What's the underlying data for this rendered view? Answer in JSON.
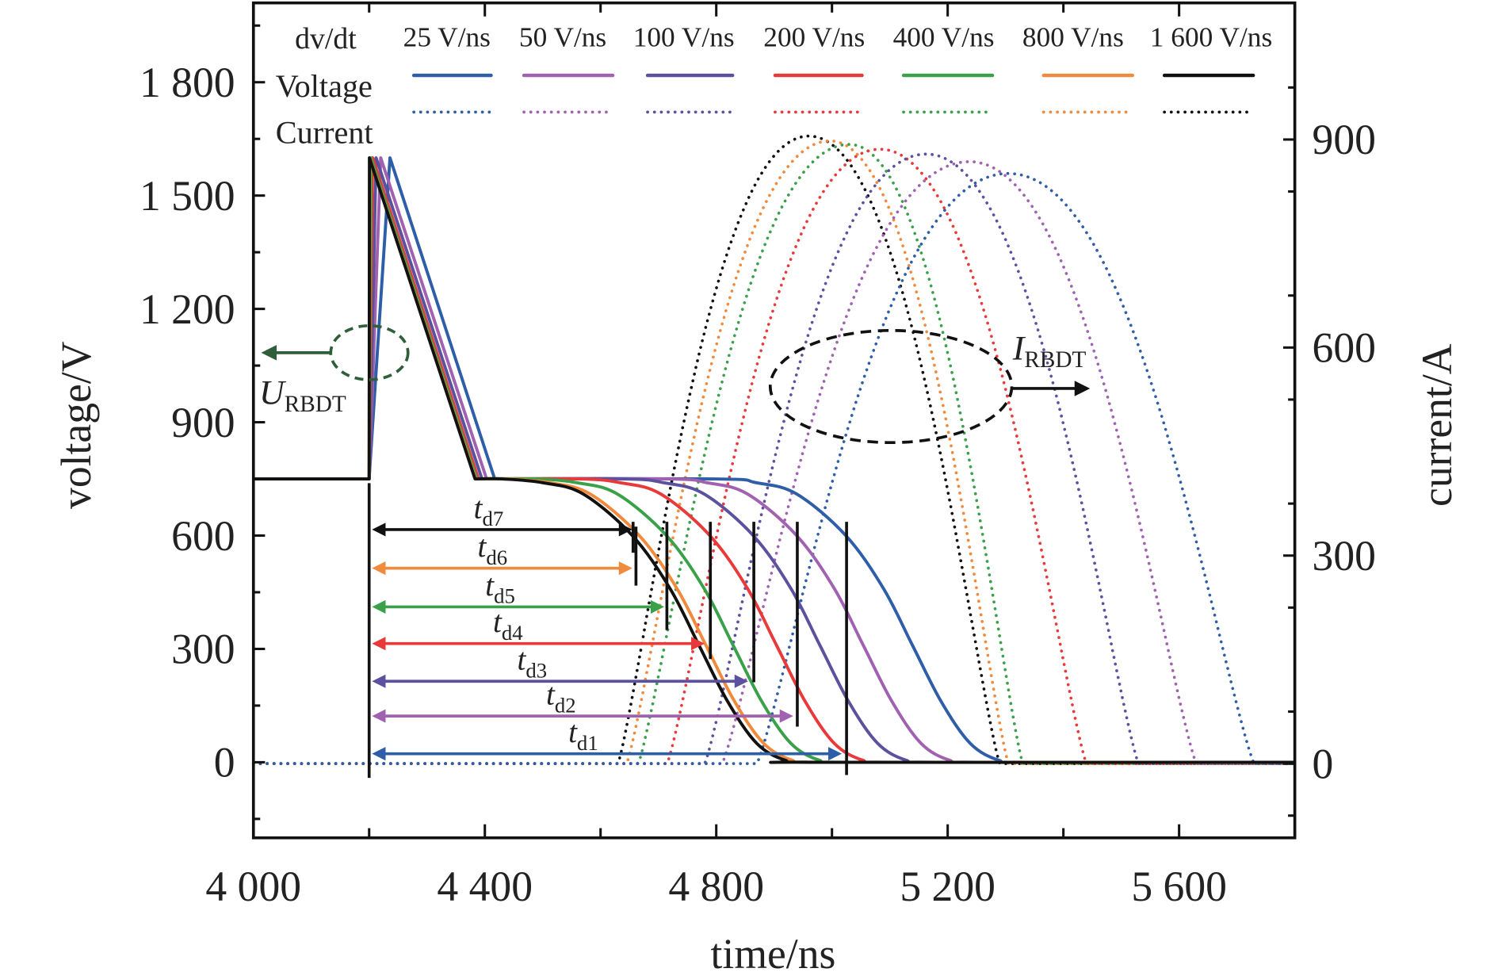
{
  "chart_data": {
    "type": "line",
    "xlabel": "time/ns",
    "ylabel_left": "voltage/V",
    "ylabel_right": "current/A",
    "xlim": [
      4000,
      5800
    ],
    "ylim_left": [
      -200,
      2010
    ],
    "ylim_right": [
      -107,
      1097
    ],
    "x_ticks": [
      {
        "v": 4000,
        "label": "4 000"
      },
      {
        "v": 4400,
        "label": "4 400"
      },
      {
        "v": 4800,
        "label": "4 800"
      },
      {
        "v": 5200,
        "label": "5 200"
      },
      {
        "v": 5600,
        "label": "5 600"
      }
    ],
    "y_left_ticks": [
      {
        "v": 0,
        "label": "0"
      },
      {
        "v": 300,
        "label": "300"
      },
      {
        "v": 600,
        "label": "600"
      },
      {
        "v": 900,
        "label": "900"
      },
      {
        "v": 1200,
        "label": "1 200"
      },
      {
        "v": 1500,
        "label": "1 500"
      },
      {
        "v": 1800,
        "label": "1 800"
      }
    ],
    "y_right_ticks": [
      {
        "v": 0,
        "label": "0"
      },
      {
        "v": 300,
        "label": "300"
      },
      {
        "v": 600,
        "label": "600"
      },
      {
        "v": 900,
        "label": "900"
      }
    ],
    "grid": false,
    "legend": {
      "placement": "top",
      "header": "dv/dt",
      "row_voltage": "Voltage",
      "row_current": "Current"
    },
    "series": [
      {
        "name": "25 V/ns",
        "color": "#2e5ea8",
        "voltage": [
          [
            4000,
            750
          ],
          [
            4200,
            750
          ],
          [
            4236,
            1600
          ],
          [
            4417,
            750
          ],
          [
            4799,
            750
          ],
          [
            4869,
            740
          ],
          [
            4939,
            710
          ],
          [
            5024,
            600
          ],
          [
            5089,
            460
          ],
          [
            5139,
            310
          ],
          [
            5189,
            160
          ],
          [
            5239,
            50
          ],
          [
            5289,
            5
          ],
          [
            5339,
            0
          ],
          [
            5800,
            0
          ]
        ],
        "current": {
          "start": 4870,
          "peak_time": 5305,
          "peak": 851,
          "end": 5730
        }
      },
      {
        "name": "50 V/ns",
        "color": "#a062b0",
        "voltage": [
          [
            4000,
            750
          ],
          [
            4200,
            750
          ],
          [
            4220,
            1600
          ],
          [
            4403,
            750
          ],
          [
            4714,
            750
          ],
          [
            4784,
            740
          ],
          [
            4854,
            710
          ],
          [
            4939,
            600
          ],
          [
            5004,
            460
          ],
          [
            5054,
            310
          ],
          [
            5104,
            160
          ],
          [
            5154,
            50
          ],
          [
            5204,
            5
          ],
          [
            5254,
            0
          ],
          [
            5800,
            0
          ]
        ],
        "current": {
          "start": 4810,
          "peak_time": 5238,
          "peak": 868,
          "end": 5630
        }
      },
      {
        "name": "100 V/ns",
        "color": "#5b519f",
        "voltage": [
          [
            4000,
            750
          ],
          [
            4200,
            750
          ],
          [
            4212,
            1600
          ],
          [
            4395,
            750
          ],
          [
            4639,
            750
          ],
          [
            4709,
            740
          ],
          [
            4779,
            710
          ],
          [
            4864,
            600
          ],
          [
            4929,
            460
          ],
          [
            4979,
            310
          ],
          [
            5029,
            160
          ],
          [
            5079,
            50
          ],
          [
            5129,
            5
          ],
          [
            5179,
            0
          ],
          [
            5800,
            0
          ]
        ],
        "current": {
          "start": 4780,
          "peak_time": 5163,
          "peak": 879,
          "end": 5530
        }
      },
      {
        "name": "200 V/ns",
        "color": "#e83a3a",
        "voltage": [
          [
            4000,
            750
          ],
          [
            4200,
            750
          ],
          [
            4206,
            1600
          ],
          [
            4389,
            750
          ],
          [
            4564,
            750
          ],
          [
            4634,
            740
          ],
          [
            4704,
            710
          ],
          [
            4789,
            600
          ],
          [
            4854,
            460
          ],
          [
            4904,
            310
          ],
          [
            4954,
            160
          ],
          [
            5004,
            50
          ],
          [
            5054,
            5
          ],
          [
            5104,
            0
          ],
          [
            5800,
            0
          ]
        ],
        "current": {
          "start": 4715,
          "peak_time": 5083,
          "peak": 886,
          "end": 5440
        }
      },
      {
        "name": "400 V/ns",
        "color": "#3aa14a",
        "voltage": [
          [
            4000,
            750
          ],
          [
            4200,
            750
          ],
          [
            4203,
            1600
          ],
          [
            4386,
            750
          ],
          [
            4489,
            750
          ],
          [
            4559,
            740
          ],
          [
            4629,
            710
          ],
          [
            4714,
            600
          ],
          [
            4779,
            460
          ],
          [
            4829,
            310
          ],
          [
            4879,
            160
          ],
          [
            4929,
            50
          ],
          [
            4979,
            5
          ],
          [
            5029,
            0
          ],
          [
            5800,
            0
          ]
        ],
        "current": {
          "start": 4665,
          "peak_time": 5030,
          "peak": 893,
          "end": 5330
        }
      },
      {
        "name": "800 V/ns",
        "color": "#f08a3c",
        "voltage": [
          [
            4000,
            750
          ],
          [
            4200,
            750
          ],
          [
            4201,
            1600
          ],
          [
            4384,
            750
          ],
          [
            4442,
            750
          ],
          [
            4512,
            740
          ],
          [
            4582,
            710
          ],
          [
            4667,
            600
          ],
          [
            4732,
            460
          ],
          [
            4782,
            310
          ],
          [
            4832,
            160
          ],
          [
            4882,
            50
          ],
          [
            4932,
            5
          ],
          [
            4982,
            0
          ],
          [
            5800,
            0
          ]
        ],
        "current": {
          "start": 4645,
          "peak_time": 4997,
          "peak": 898,
          "end": 5305
        }
      },
      {
        "name": "1 600 V/ns",
        "color": "#111111",
        "voltage": [
          [
            4000,
            750
          ],
          [
            4200,
            750
          ],
          [
            4200.5,
            1600
          ],
          [
            4383,
            750
          ],
          [
            4430,
            750
          ],
          [
            4500,
            740
          ],
          [
            4570,
            710
          ],
          [
            4655,
            600
          ],
          [
            4720,
            460
          ],
          [
            4770,
            310
          ],
          [
            4820,
            160
          ],
          [
            4870,
            50
          ],
          [
            4920,
            5
          ],
          [
            4970,
            0
          ],
          [
            5800,
            0
          ]
        ],
        "current": {
          "start": 4630,
          "peak_time": 4960,
          "peak": 905,
          "end": 5290
        }
      }
    ],
    "delay_marks": [
      {
        "label": "t",
        "sub": "d7",
        "color": "#111111",
        "end": 4655
      },
      {
        "label": "t",
        "sub": "d6",
        "color": "#f08a3c",
        "end": 4655
      },
      {
        "label": "t",
        "sub": "d5",
        "color": "#3aa14a",
        "end": 4710
      },
      {
        "label": "t",
        "sub": "d4",
        "color": "#e83a3a",
        "end": 4780
      },
      {
        "label": "t",
        "sub": "d3",
        "color": "#5b519f",
        "end": 4855
      },
      {
        "label": "t",
        "sub": "d2",
        "color": "#a062b0",
        "end": 4933
      },
      {
        "label": "t",
        "sub": "d1",
        "color": "#2e5ea8",
        "end": 5017
      }
    ],
    "delay_start": 4200,
    "annotations": {
      "voltage": {
        "main": "U",
        "sub": "RBDT",
        "color": "#2f5f3a"
      },
      "current": {
        "main": "I",
        "sub": "RBDT",
        "color": "#111111"
      }
    }
  }
}
